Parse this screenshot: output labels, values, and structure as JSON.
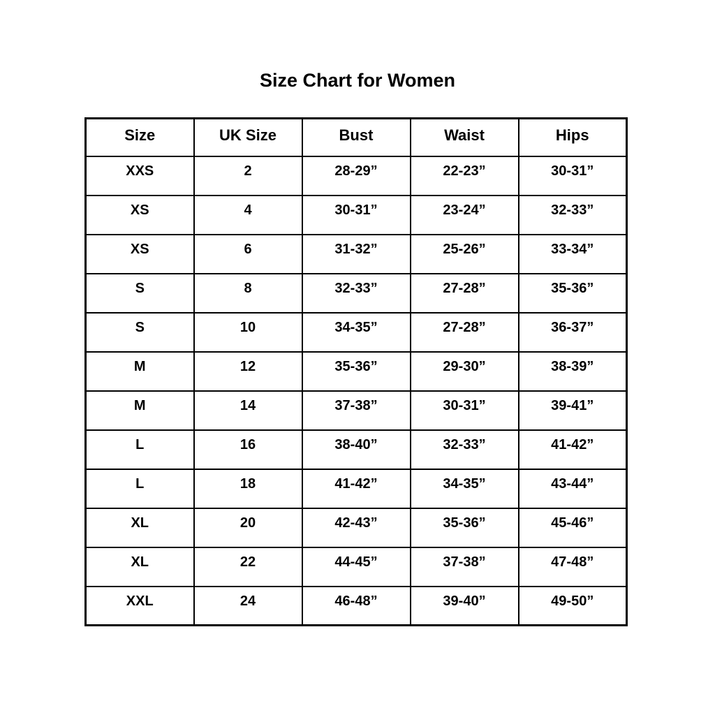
{
  "page": {
    "title": "Size Chart for Women"
  },
  "colors": {
    "background": "#ffffff",
    "text": "#000000",
    "border": "#000000"
  },
  "table": {
    "headers": [
      "Size",
      "UK Size",
      "Bust",
      "Waist",
      "Hips"
    ],
    "rows": [
      [
        "XXS",
        "2",
        "28-29”",
        "22-23”",
        "30-31”"
      ],
      [
        "XS",
        "4",
        "30-31”",
        "23-24”",
        "32-33”"
      ],
      [
        "XS",
        "6",
        "31-32”",
        "25-26”",
        "33-34”"
      ],
      [
        "S",
        "8",
        "32-33”",
        "27-28”",
        "35-36”"
      ],
      [
        "S",
        "10",
        "34-35”",
        "27-28”",
        "36-37”"
      ],
      [
        "M",
        "12",
        "35-36”",
        "29-30”",
        "38-39”"
      ],
      [
        "M",
        "14",
        "37-38”",
        "30-31”",
        "39-41”"
      ],
      [
        "L",
        "16",
        "38-40”",
        "32-33”",
        "41-42”"
      ],
      [
        "L",
        "18",
        "41-42”",
        "34-35”",
        "43-44”"
      ],
      [
        "XL",
        "20",
        "42-43”",
        "35-36”",
        "45-46”"
      ],
      [
        "XL",
        "22",
        "44-45”",
        "37-38”",
        "47-48”"
      ],
      [
        "XXL",
        "24",
        "46-48”",
        "39-40”",
        "49-50”"
      ]
    ]
  },
  "chart_data": {
    "type": "table",
    "title": "Size Chart for Women",
    "columns": [
      "Size",
      "UK Size",
      "Bust",
      "Waist",
      "Hips"
    ],
    "rows": [
      {
        "size": "XXS",
        "uk_size": 2,
        "bust_in": "28-29",
        "waist_in": "22-23",
        "hips_in": "30-31"
      },
      {
        "size": "XS",
        "uk_size": 4,
        "bust_in": "30-31",
        "waist_in": "23-24",
        "hips_in": "32-33"
      },
      {
        "size": "XS",
        "uk_size": 6,
        "bust_in": "31-32",
        "waist_in": "25-26",
        "hips_in": "33-34"
      },
      {
        "size": "S",
        "uk_size": 8,
        "bust_in": "32-33",
        "waist_in": "27-28",
        "hips_in": "35-36"
      },
      {
        "size": "S",
        "uk_size": 10,
        "bust_in": "34-35",
        "waist_in": "27-28",
        "hips_in": "36-37"
      },
      {
        "size": "M",
        "uk_size": 12,
        "bust_in": "35-36",
        "waist_in": "29-30",
        "hips_in": "38-39"
      },
      {
        "size": "M",
        "uk_size": 14,
        "bust_in": "37-38",
        "waist_in": "30-31",
        "hips_in": "39-41"
      },
      {
        "size": "L",
        "uk_size": 16,
        "bust_in": "38-40",
        "waist_in": "32-33",
        "hips_in": "41-42"
      },
      {
        "size": "L",
        "uk_size": 18,
        "bust_in": "41-42",
        "waist_in": "34-35",
        "hips_in": "43-44"
      },
      {
        "size": "XL",
        "uk_size": 20,
        "bust_in": "42-43",
        "waist_in": "35-36",
        "hips_in": "45-46"
      },
      {
        "size": "XL",
        "uk_size": 22,
        "bust_in": "44-45",
        "waist_in": "37-38",
        "hips_in": "47-48"
      },
      {
        "size": "XXL",
        "uk_size": 24,
        "bust_in": "46-48",
        "waist_in": "39-40",
        "hips_in": "49-50"
      }
    ],
    "units": "inches",
    "layout": "5 equal-width columns, 1 header row + 12 data rows, black 2-3px grid borders on white"
  }
}
